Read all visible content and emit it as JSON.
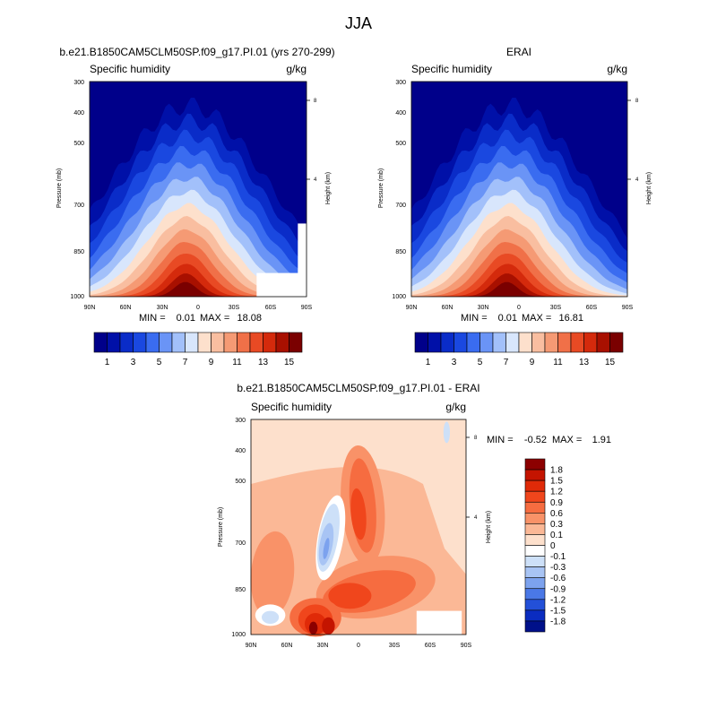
{
  "figure": {
    "title": "JJA"
  },
  "chart_data": [
    {
      "type": "heatmap",
      "title": "b.e21.B1850CAM5CLM50SP.f09_g17.PI.01 (yrs 270-299)",
      "left_label": "Specific humidity",
      "units": "g/kg",
      "ylabel": "Pressure (mb)",
      "right_label": "Height (km)",
      "x_ticks": [
        "90N",
        "60N",
        "30N",
        "0",
        "30S",
        "60S",
        "90S"
      ],
      "y_ticks": [
        "300",
        "400",
        "500",
        "700",
        "850",
        "1000"
      ],
      "height_ticks": [
        "8",
        "4"
      ],
      "stats": {
        "min_label": "MIN =",
        "min": "0.01",
        "max_label": "MAX =",
        "max": "18.08"
      },
      "peak_value": 18.08,
      "colorbar": {
        "orientation": "horizontal",
        "labels": [
          "1",
          "3",
          "5",
          "7",
          "9",
          "11",
          "13",
          "15"
        ],
        "colors": [
          "#00008a",
          "#0010a8",
          "#0a2cc8",
          "#1a48e0",
          "#3a6cf0",
          "#6a94f6",
          "#a2c0fa",
          "#d8e6fc",
          "#fde0cc",
          "#f9bea0",
          "#f59a74",
          "#f07048",
          "#e84a24",
          "#d42a0c",
          "#a81000",
          "#7a0000"
        ]
      }
    },
    {
      "type": "heatmap",
      "title": "ERAI",
      "left_label": "Specific humidity",
      "units": "g/kg",
      "ylabel": "Pressure (mb)",
      "right_label": "Height (km)",
      "x_ticks": [
        "90N",
        "60N",
        "30N",
        "0",
        "30S",
        "60S",
        "90S"
      ],
      "y_ticks": [
        "300",
        "400",
        "500",
        "700",
        "850",
        "1000"
      ],
      "height_ticks": [
        "8",
        "4"
      ],
      "stats": {
        "min_label": "MIN =",
        "min": "0.01",
        "max_label": "MAX =",
        "max": "16.81"
      },
      "peak_value": 16.81,
      "colorbar": {
        "orientation": "horizontal",
        "labels": [
          "1",
          "3",
          "5",
          "7",
          "9",
          "11",
          "13",
          "15"
        ],
        "colors": [
          "#00008a",
          "#0010a8",
          "#0a2cc8",
          "#1a48e0",
          "#3a6cf0",
          "#6a94f6",
          "#a2c0fa",
          "#d8e6fc",
          "#fde0cc",
          "#f9bea0",
          "#f59a74",
          "#f07048",
          "#e84a24",
          "#d42a0c",
          "#a81000",
          "#7a0000"
        ]
      }
    },
    {
      "type": "heatmap",
      "title": "b.e21.B1850CAM5CLM50SP.f09_g17.PI.01 - ERAI",
      "left_label": "Specific humidity",
      "units": "g/kg",
      "ylabel": "Pressure (mb)",
      "right_label": "Height (km)",
      "x_ticks": [
        "90N",
        "60N",
        "30N",
        "0",
        "30S",
        "60S",
        "90S"
      ],
      "y_ticks": [
        "300",
        "400",
        "500",
        "700",
        "850",
        "1000"
      ],
      "height_ticks": [
        "8",
        "4"
      ],
      "stats": {
        "min_label": "MIN =",
        "min": "-0.52",
        "max_label": "MAX =",
        "max": "1.91"
      },
      "colorbar": {
        "orientation": "vertical",
        "labels": [
          "1.8",
          "1.5",
          "1.2",
          "0.9",
          "0.6",
          "0.3",
          "0.1",
          "0",
          "-0.1",
          "-0.3",
          "-0.6",
          "-0.9",
          "-1.2",
          "-1.5",
          "-1.8"
        ],
        "colors": [
          "#8c0000",
          "#c41400",
          "#e02a08",
          "#f0461c",
          "#f66c40",
          "#f99268",
          "#fbb896",
          "#fde0cc",
          "#ffffff",
          "#cde0f8",
          "#a8c4f4",
          "#7ca2ee",
          "#4a78e6",
          "#2350d8",
          "#0a2cc0",
          "#00108a"
        ]
      }
    }
  ]
}
